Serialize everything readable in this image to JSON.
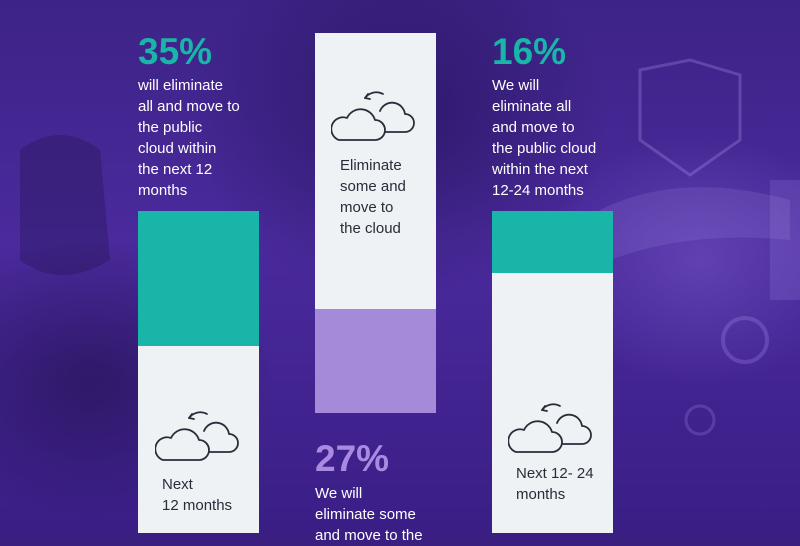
{
  "chart_data": {
    "type": "bar",
    "bars": [
      {
        "category": "Next 12 months",
        "label_lines": [
          "Next",
          "12 months"
        ],
        "value": 35,
        "value_label": "35%",
        "description_lines": [
          "will eliminate",
          "all and move to",
          "the public",
          "cloud within",
          "the next 12",
          "months"
        ],
        "fill_color": "#19b5a8"
      },
      {
        "category": "Eliminate some and move to the cloud",
        "label_lines": [
          "Eliminate",
          "some and",
          "move to",
          "the cloud"
        ],
        "value": 27,
        "value_label": "27%",
        "description_lines": [
          "We will",
          "eliminate some",
          "and move to the"
        ],
        "fill_color": "#a48ad8"
      },
      {
        "category": "Next 12- 24 months",
        "label_lines": [
          "Next 12- 24",
          "months"
        ],
        "value": 16,
        "value_label": "16%",
        "description_lines": [
          "We will",
          "eliminate all",
          "and move to",
          "the public cloud",
          "within the next",
          "12-24 months"
        ],
        "fill_color": "#19b5a8"
      }
    ]
  },
  "icons": [
    "cloud-icon",
    "cloud-icon",
    "cloud-icon"
  ]
}
